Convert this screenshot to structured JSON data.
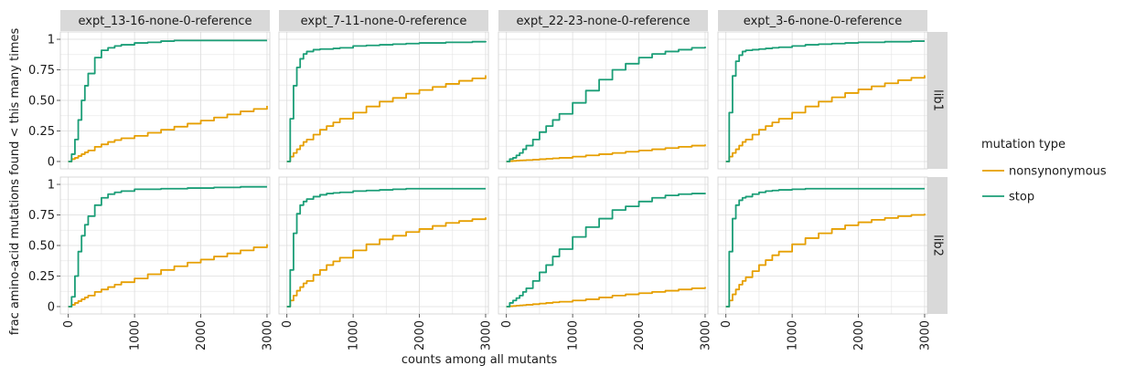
{
  "chart_data": {
    "type": "line",
    "facet_columns": [
      "expt_13-16-none-0-reference",
      "expt_7-11-none-0-reference",
      "expt_22-23-none-0-reference",
      "expt_3-6-none-0-reference"
    ],
    "facet_rows": [
      "lib1",
      "lib2"
    ],
    "xlabel": "counts among all mutants",
    "ylabel": "frac amino-acid mutations found < this many times",
    "xlim": [
      0,
      3000
    ],
    "ylim": [
      0,
      1
    ],
    "x_ticks": [
      0,
      1000,
      2000,
      3000
    ],
    "y_ticks": [
      0,
      0.25,
      0.5,
      0.75,
      1
    ],
    "y_tick_labels": [
      "0",
      "0.25",
      "0.50",
      "0.75",
      "1"
    ],
    "grid": true,
    "legend": {
      "title": "mutation type",
      "placement": "right",
      "entries": [
        {
          "name": "nonsynonymous",
          "color": "#E69F00"
        },
        {
          "name": "stop",
          "color": "#1B9E77"
        }
      ]
    },
    "x": [
      0,
      50,
      100,
      150,
      200,
      250,
      300,
      400,
      500,
      600,
      700,
      800,
      1000,
      1200,
      1400,
      1600,
      1800,
      2000,
      2200,
      2400,
      2600,
      2800,
      3000
    ],
    "panels": [
      {
        "column": "expt_13-16-none-0-reference",
        "row": "lib1",
        "series": [
          {
            "name": "nonsynonymous",
            "values": [
              0.0,
              0.02,
              0.03,
              0.045,
              0.06,
              0.075,
              0.09,
              0.12,
              0.14,
              0.16,
              0.175,
              0.19,
              0.21,
              0.235,
              0.26,
              0.285,
              0.31,
              0.335,
              0.36,
              0.385,
              0.41,
              0.43,
              0.455
            ]
          },
          {
            "name": "stop",
            "values": [
              0.0,
              0.06,
              0.18,
              0.34,
              0.5,
              0.62,
              0.72,
              0.85,
              0.91,
              0.93,
              0.945,
              0.955,
              0.97,
              0.975,
              0.985,
              0.99,
              0.99,
              0.99,
              0.99,
              0.99,
              0.99,
              0.99,
              0.99
            ]
          }
        ]
      },
      {
        "column": "expt_7-11-none-0-reference",
        "row": "lib1",
        "series": [
          {
            "name": "nonsynonymous",
            "values": [
              0.0,
              0.04,
              0.07,
              0.1,
              0.13,
              0.16,
              0.18,
              0.22,
              0.26,
              0.29,
              0.32,
              0.35,
              0.4,
              0.45,
              0.49,
              0.52,
              0.555,
              0.585,
              0.61,
              0.635,
              0.66,
              0.68,
              0.705
            ]
          },
          {
            "name": "stop",
            "values": [
              0.0,
              0.35,
              0.62,
              0.77,
              0.84,
              0.88,
              0.9,
              0.915,
              0.92,
              0.92,
              0.925,
              0.93,
              0.945,
              0.95,
              0.955,
              0.96,
              0.965,
              0.97,
              0.97,
              0.975,
              0.975,
              0.98,
              0.985
            ]
          }
        ]
      },
      {
        "column": "expt_22-23-none-0-reference",
        "row": "lib1",
        "series": [
          {
            "name": "nonsynonymous",
            "values": [
              0.0,
              0.003,
              0.005,
              0.007,
              0.009,
              0.01,
              0.012,
              0.015,
              0.019,
              0.022,
              0.026,
              0.03,
              0.04,
              0.05,
              0.06,
              0.07,
              0.08,
              0.09,
              0.1,
              0.11,
              0.12,
              0.13,
              0.14
            ]
          },
          {
            "name": "stop",
            "values": [
              0.0,
              0.02,
              0.03,
              0.05,
              0.07,
              0.1,
              0.13,
              0.18,
              0.24,
              0.29,
              0.34,
              0.39,
              0.48,
              0.58,
              0.67,
              0.75,
              0.8,
              0.85,
              0.88,
              0.9,
              0.915,
              0.93,
              0.94
            ]
          }
        ]
      },
      {
        "column": "expt_3-6-none-0-reference",
        "row": "lib1",
        "series": [
          {
            "name": "nonsynonymous",
            "values": [
              0.0,
              0.04,
              0.07,
              0.1,
              0.13,
              0.16,
              0.18,
              0.22,
              0.26,
              0.29,
              0.32,
              0.35,
              0.4,
              0.45,
              0.49,
              0.525,
              0.56,
              0.59,
              0.615,
              0.64,
              0.665,
              0.685,
              0.705
            ]
          },
          {
            "name": "stop",
            "values": [
              0.0,
              0.4,
              0.7,
              0.82,
              0.87,
              0.9,
              0.91,
              0.915,
              0.92,
              0.925,
              0.93,
              0.935,
              0.945,
              0.955,
              0.96,
              0.965,
              0.97,
              0.975,
              0.975,
              0.98,
              0.98,
              0.985,
              0.985
            ]
          }
        ]
      },
      {
        "column": "expt_13-16-none-0-reference",
        "row": "lib2",
        "series": [
          {
            "name": "nonsynonymous",
            "values": [
              0.0,
              0.015,
              0.03,
              0.045,
              0.06,
              0.075,
              0.09,
              0.12,
              0.14,
              0.16,
              0.18,
              0.2,
              0.23,
              0.265,
              0.3,
              0.33,
              0.36,
              0.385,
              0.41,
              0.435,
              0.46,
              0.485,
              0.51
            ]
          },
          {
            "name": "stop",
            "values": [
              0.0,
              0.08,
              0.25,
              0.45,
              0.58,
              0.67,
              0.74,
              0.83,
              0.89,
              0.92,
              0.935,
              0.945,
              0.96,
              0.96,
              0.965,
              0.965,
              0.97,
              0.97,
              0.975,
              0.975,
              0.98,
              0.98,
              0.98
            ]
          }
        ]
      },
      {
        "column": "expt_7-11-none-0-reference",
        "row": "lib2",
        "series": [
          {
            "name": "nonsynonymous",
            "values": [
              0.0,
              0.05,
              0.09,
              0.13,
              0.16,
              0.19,
              0.21,
              0.26,
              0.3,
              0.34,
              0.37,
              0.4,
              0.46,
              0.51,
              0.55,
              0.58,
              0.61,
              0.635,
              0.66,
              0.685,
              0.7,
              0.715,
              0.73
            ]
          },
          {
            "name": "stop",
            "values": [
              0.0,
              0.3,
              0.6,
              0.76,
              0.83,
              0.86,
              0.88,
              0.9,
              0.915,
              0.925,
              0.93,
              0.935,
              0.945,
              0.95,
              0.955,
              0.96,
              0.965,
              0.965,
              0.965,
              0.965,
              0.965,
              0.965,
              0.965
            ]
          }
        ]
      },
      {
        "column": "expt_22-23-none-0-reference",
        "row": "lib2",
        "series": [
          {
            "name": "nonsynonymous",
            "values": [
              0.0,
              0.003,
              0.005,
              0.008,
              0.01,
              0.012,
              0.015,
              0.02,
              0.025,
              0.03,
              0.035,
              0.04,
              0.05,
              0.06,
              0.075,
              0.09,
              0.1,
              0.11,
              0.12,
              0.13,
              0.14,
              0.15,
              0.16
            ]
          },
          {
            "name": "stop",
            "values": [
              0.0,
              0.03,
              0.05,
              0.07,
              0.09,
              0.12,
              0.15,
              0.21,
              0.28,
              0.34,
              0.41,
              0.47,
              0.57,
              0.65,
              0.72,
              0.79,
              0.82,
              0.86,
              0.89,
              0.91,
              0.92,
              0.925,
              0.93
            ]
          }
        ]
      },
      {
        "column": "expt_3-6-none-0-reference",
        "row": "lib2",
        "series": [
          {
            "name": "nonsynonymous",
            "values": [
              0.0,
              0.05,
              0.1,
              0.14,
              0.18,
              0.21,
              0.24,
              0.29,
              0.34,
              0.38,
              0.42,
              0.45,
              0.51,
              0.56,
              0.6,
              0.635,
              0.665,
              0.69,
              0.71,
              0.725,
              0.74,
              0.75,
              0.76
            ]
          },
          {
            "name": "stop",
            "values": [
              0.0,
              0.45,
              0.72,
              0.83,
              0.87,
              0.89,
              0.9,
              0.92,
              0.935,
              0.945,
              0.95,
              0.955,
              0.96,
              0.965,
              0.965,
              0.965,
              0.965,
              0.965,
              0.965,
              0.965,
              0.965,
              0.965,
              0.965
            ]
          }
        ]
      }
    ]
  }
}
